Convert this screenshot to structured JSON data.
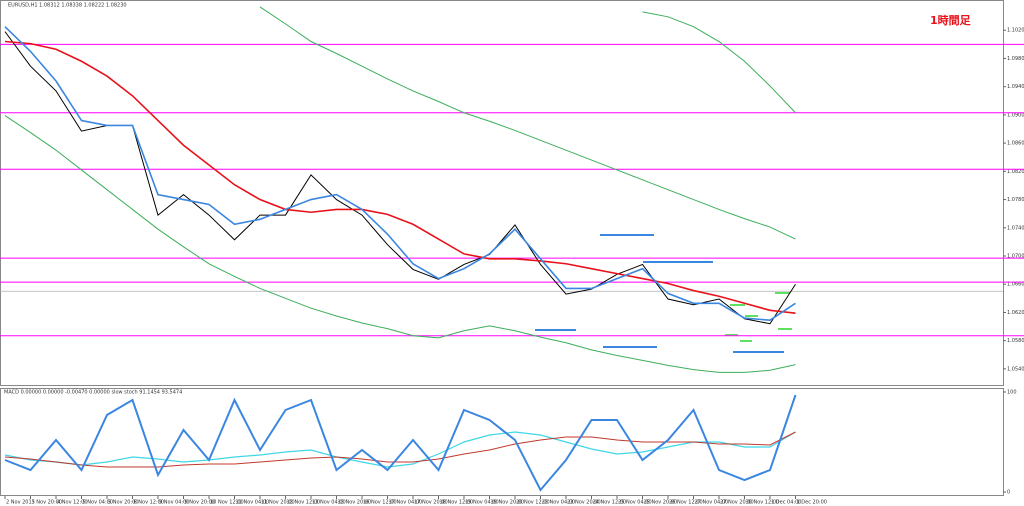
{
  "chart_data": [
    {
      "type": "line",
      "title": "EURUSD,H1 1.08312 1.08338 1.08222 1.08230",
      "annotation": "1時間足",
      "ylim": [
        1.052,
        1.106
      ],
      "yticks": [
        {
          "value": 1.054,
          "label": "1.05400"
        },
        {
          "value": 1.058,
          "label": "1.05800"
        },
        {
          "value": 1.062,
          "label": "1.06200"
        },
        {
          "value": 1.066,
          "label": "1.06600"
        },
        {
          "value": 1.07,
          "label": "1.07000"
        },
        {
          "value": 1.074,
          "label": "1.07400"
        },
        {
          "value": 1.078,
          "label": "1.07800"
        },
        {
          "value": 1.082,
          "label": "1.08200"
        },
        {
          "value": 1.086,
          "label": "1.08600"
        },
        {
          "value": 1.09,
          "label": "1.09000"
        },
        {
          "value": 1.094,
          "label": "1.09400"
        },
        {
          "value": 1.098,
          "label": "1.09800"
        },
        {
          "value": 1.102,
          "label": "1.10200"
        }
      ],
      "hlines": [
        1.1,
        1.0903,
        1.0823,
        1.0697,
        1.0663,
        1.0587
      ],
      "hline_color": "#ff00ff",
      "current_price": 1.065,
      "current_color": "#b0b0b0",
      "series": [
        {
          "color": "#000000",
          "width": 1,
          "values": [
            1.1018,
            1.0969,
            1.0934,
            1.0877,
            1.0885,
            1.0885,
            1.0758,
            1.0787,
            1.0758,
            1.0723,
            1.0758,
            1.0758,
            1.0815,
            1.078,
            1.0758,
            1.0716,
            1.0681,
            1.0667,
            1.0688,
            1.0702,
            1.0744,
            1.0688,
            1.0646,
            1.0653,
            1.0674,
            1.0688,
            1.0639,
            1.0631,
            1.0639,
            1.0611,
            1.0604,
            1.066
          ]
        },
        {
          "color": "#e8121b",
          "width": 1.6,
          "values": [
            1.1004,
            1.1001,
            1.0993,
            1.0976,
            1.0955,
            1.0927,
            1.0892,
            1.0857,
            1.0829,
            1.0801,
            1.078,
            1.0766,
            1.0762,
            1.0766,
            1.0766,
            1.0759,
            1.0745,
            1.0724,
            1.0703,
            1.0696,
            1.0696,
            1.0693,
            1.0689,
            1.0682,
            1.0675,
            1.0668,
            1.0661,
            1.0651,
            1.0643,
            1.0633,
            1.0623,
            1.0619
          ]
        },
        {
          "color": "#3a86e0",
          "width": 1.6,
          "values": [
            1.1025,
            1.099,
            1.0948,
            1.0892,
            1.0885,
            1.0885,
            1.0787,
            1.078,
            1.0773,
            1.0745,
            1.0752,
            1.0766,
            1.078,
            1.0787,
            1.0766,
            1.0731,
            1.0689,
            1.0668,
            1.0682,
            1.0703,
            1.0738,
            1.0696,
            1.0654,
            1.0654,
            1.0668,
            1.0682,
            1.0647,
            1.0633,
            1.0633,
            1.0612,
            1.0609,
            1.0633
          ]
        },
        {
          "color": "#3cae5a",
          "width": 1,
          "values": [
            null,
            null,
            null,
            null,
            null,
            null,
            null,
            null,
            null,
            null,
            1.1053,
            1.1029,
            1.1004,
            1.0987,
            1.0969,
            1.0951,
            1.0934,
            1.0919,
            1.0903,
            1.0891,
            1.0878,
            1.0864,
            1.085,
            1.0836,
            1.0822,
            1.0808,
            1.0794,
            1.078,
            1.0766,
            1.0753,
            1.0741,
            1.0724
          ]
        },
        {
          "color": "#3cae5a",
          "width": 1,
          "values": [
            null,
            null,
            null,
            null,
            null,
            null,
            null,
            null,
            null,
            null,
            null,
            null,
            null,
            null,
            null,
            null,
            null,
            null,
            null,
            null,
            null,
            null,
            null,
            null,
            null,
            1.1046,
            1.1039,
            1.1025,
            1.1004,
            1.0976,
            1.0941,
            1.0903
          ]
        },
        {
          "color": "#3cae5a",
          "width": 1,
          "values": [
            1.0899,
            1.0875,
            1.085,
            1.0822,
            1.0794,
            1.0766,
            1.0738,
            1.0713,
            1.0689,
            1.0671,
            1.0654,
            1.064,
            1.0626,
            1.0615,
            1.0605,
            1.0597,
            1.0587,
            1.0584,
            1.0594,
            1.0601,
            1.0594,
            1.0585,
            1.0577,
            1.0567,
            1.0559,
            1.0552,
            1.0545,
            1.0539,
            1.0535,
            1.0535,
            1.0538,
            1.0546
          ]
        }
      ]
    },
    {
      "type": "line",
      "title": "MACD 0.00000 0.00000 -0.00470 0.00000 slow stoch 91.1454 93.5474",
      "ylim": [
        0,
        100
      ],
      "yticks": [
        0,
        100
      ],
      "categories": [
        "2 Nov 2015",
        "3 Nov 20:00",
        "4 Nov 12:00",
        "5 Nov 04:00",
        "5 Nov 20:00",
        "6 Nov 12:00",
        "9 Nov 04:00",
        "9 Nov 20:00",
        "10 Nov 12:00",
        "11 Nov 04:00",
        "11 Nov 20:00",
        "12 Nov 12:00",
        "13 Nov 04:00",
        "13 Nov 20:00",
        "16 Nov 12:00",
        "17 Nov 04:00",
        "17 Nov 20:00",
        "18 Nov 12:00",
        "19 Nov 04:00",
        "19 Nov 20:00",
        "20 Nov 12:00",
        "23 Nov 04:00",
        "23 Nov 20:00",
        "24 Nov 12:00",
        "25 Nov 04:00",
        "25 Nov 20:00",
        "26 Nov 12:00",
        "27 Nov 04:00",
        "27 Nov 20:00",
        "30 Nov 12:00",
        "1 Dec 04:00",
        "1 Dec 20:00"
      ],
      "series": [
        {
          "color": "#3fd6e8",
          "width": 1.2,
          "values": [
            37,
            32,
            30,
            27,
            30,
            35,
            33,
            30,
            32,
            35,
            37,
            40,
            42,
            35,
            30,
            25,
            28,
            38,
            50,
            57,
            60,
            57,
            50,
            43,
            38,
            40,
            45,
            50,
            50,
            45,
            45,
            60
          ]
        },
        {
          "color": "#c0392b",
          "width": 1,
          "values": [
            35,
            33,
            30,
            27,
            25,
            25,
            25,
            27,
            28,
            28,
            30,
            32,
            34,
            35,
            33,
            30,
            30,
            33,
            38,
            42,
            48,
            52,
            55,
            55,
            52,
            50,
            50,
            50,
            48,
            48,
            47,
            60
          ]
        },
        {
          "color": "#3a86e0",
          "width": 2,
          "values": [
            32,
            22,
            52,
            22,
            77,
            92,
            17,
            62,
            32,
            92,
            42,
            82,
            92,
            22,
            42,
            22,
            52,
            22,
            82,
            72,
            52,
            2,
            32,
            72,
            72,
            32,
            52,
            82,
            22,
            12,
            22,
            97
          ]
        }
      ]
    }
  ]
}
